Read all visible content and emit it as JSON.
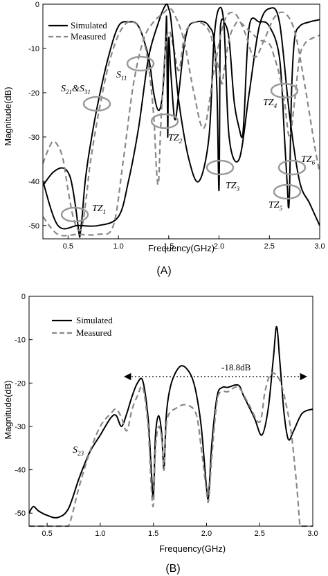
{
  "chart_data": [
    {
      "type": "line",
      "panel_label": "(A)",
      "xlabel": "Frequency(GHz)",
      "ylabel": "Magnitude(dB)",
      "xlim": [
        0.25,
        3.0
      ],
      "ylim": [
        -53,
        0
      ],
      "xticks": [
        "0.5",
        "1.0",
        "1.5",
        "2.0",
        "2.5",
        "3.0"
      ],
      "yticks": [
        "0",
        "-10",
        "-20",
        "-30",
        "-40",
        "-50"
      ],
      "legend": "top-left",
      "series": [
        {
          "name": "Simulated",
          "style": "solid",
          "color": "#000000",
          "x": [
            0.25,
            0.35,
            0.45,
            0.52,
            0.57,
            0.61,
            0.62,
            0.64,
            0.67,
            0.72,
            0.8,
            0.9,
            1.0,
            1.1,
            1.2,
            1.3,
            1.35,
            1.4,
            1.44,
            1.47,
            1.48,
            1.49,
            1.5,
            1.52,
            1.56,
            1.6,
            1.65,
            1.7,
            1.78,
            1.85,
            1.9,
            1.95,
            1.98,
            2.0,
            2.01,
            2.02,
            2.05,
            2.1,
            2.15,
            2.2,
            2.23,
            2.25,
            2.3,
            2.4,
            2.5,
            2.6,
            2.65,
            2.68,
            2.69,
            2.7,
            2.72,
            2.75,
            2.8,
            2.9,
            3.0
          ],
          "y": [
            -41,
            -38,
            -37,
            -39,
            -45,
            -52,
            -52,
            -48,
            -40,
            -32,
            -22,
            -12,
            -5,
            -4,
            -5,
            -12,
            -20,
            -24,
            -20,
            -8,
            -4,
            -30,
            -8,
            -15,
            -26,
            -20,
            -10,
            -5,
            -4,
            -4,
            -5,
            -8,
            -20,
            -42,
            -10,
            -4,
            -4,
            -8,
            -22,
            -28,
            -30,
            -25,
            -5,
            -4,
            -5,
            -12,
            -30,
            -42,
            -46,
            -42,
            -20,
            -8,
            -5,
            -4,
            -3.5
          ]
        },
        {
          "name": "Measured",
          "style": "dashed",
          "color": "#888888",
          "x": [
            0.25,
            0.3,
            0.35,
            0.4,
            0.45,
            0.5,
            0.55,
            0.6,
            0.64,
            0.68,
            0.72,
            0.8,
            0.9,
            1.0,
            1.1,
            1.2,
            1.26,
            1.3,
            1.35,
            1.38,
            1.4,
            1.42,
            1.46,
            1.5,
            1.55,
            1.6,
            1.65,
            1.7,
            1.8,
            1.9,
            1.95,
            2.0,
            2.03,
            2.05,
            2.1,
            2.15,
            2.2,
            2.3,
            2.4,
            2.5,
            2.55,
            2.6,
            2.65,
            2.7,
            2.75,
            2.8,
            2.85,
            2.9,
            3.0
          ],
          "y": [
            -36,
            -33,
            -31,
            -32,
            -35,
            -42,
            -48,
            -51,
            -50,
            -44,
            -36,
            -25,
            -14,
            -7,
            -4,
            -5,
            -9,
            -14,
            -25,
            -38,
            -40,
            -28,
            -12,
            -6,
            -10,
            -15,
            -8,
            -5,
            -4,
            -6,
            -10,
            -15,
            -18,
            -15,
            -8,
            -5,
            -4,
            -6,
            -8,
            -9,
            -12,
            -16,
            -22,
            -30,
            -22,
            -12,
            -9,
            -8,
            -7
          ]
        },
        {
          "name": "",
          "style": "solid",
          "color": "#000000",
          "x": [
            0.25,
            0.4,
            0.6,
            0.8,
            1.0,
            1.1,
            1.2,
            1.3,
            1.4,
            1.45,
            1.48,
            1.5,
            1.52,
            1.55,
            1.6,
            1.7,
            1.8,
            1.9,
            1.95,
            2.0,
            2.05,
            2.1,
            2.2,
            2.3,
            2.4,
            2.5,
            2.6,
            2.7,
            2.8,
            2.9,
            3.0
          ],
          "y": [
            -40,
            -50,
            -50,
            -50,
            -48,
            -40,
            -28,
            -12,
            -4,
            -1,
            0,
            -1,
            -3,
            -10,
            -22,
            -35,
            -40,
            -30,
            -8,
            -1,
            -5,
            -30,
            -35,
            -20,
            -5,
            -1,
            -4,
            -25,
            -40,
            -45,
            -50
          ]
        },
        {
          "name": "",
          "style": "dashed",
          "color": "#888888",
          "x": [
            0.25,
            0.4,
            0.6,
            0.8,
            0.95,
            1.05,
            1.15,
            1.25,
            1.35,
            1.45,
            1.5,
            1.55,
            1.65,
            1.75,
            1.85,
            1.95,
            2.05,
            2.15,
            2.25,
            2.35,
            2.45,
            2.55,
            2.65,
            2.75,
            2.85,
            2.95,
            3.0
          ],
          "y": [
            -48,
            -52,
            -52,
            -52,
            -50,
            -35,
            -18,
            -8,
            -4,
            -2,
            -1,
            -2,
            -8,
            -20,
            -28,
            -15,
            -4,
            -2,
            -6,
            -12,
            -8,
            -3,
            -2,
            -6,
            -18,
            -32,
            -38
          ]
        }
      ],
      "annotations": [
        {
          "text": "TZ",
          "sub": "1"
        },
        {
          "text": "TZ",
          "sub": "2"
        },
        {
          "text": "TZ",
          "sub": "3"
        },
        {
          "text": "TZ",
          "sub": "4"
        },
        {
          "text": "TZ",
          "sub": "5"
        },
        {
          "text": "TZ",
          "sub": "6"
        },
        {
          "text": "S",
          "sub": "11"
        },
        {
          "text": "S",
          "sub": "21",
          "mid": "&",
          "text2": "S",
          "sub2": "31"
        }
      ]
    },
    {
      "type": "line",
      "panel_label": "(B)",
      "xlabel": "Frequency(GHz)",
      "ylabel": "Magnitude(dB)",
      "xlim": [
        0.33,
        3.0
      ],
      "ylim": [
        -53,
        0
      ],
      "xticks": [
        "0.5",
        "1.0",
        "1.5",
        "2.0",
        "2.5",
        "3.0"
      ],
      "yticks": [
        "0",
        "-10",
        "-20",
        "-30",
        "-40",
        "-50"
      ],
      "legend": "top-left",
      "series": [
        {
          "name": "Simulated",
          "style": "solid",
          "color": "#000000",
          "x": [
            0.33,
            0.37,
            0.42,
            0.5,
            0.6,
            0.7,
            0.8,
            0.9,
            1.0,
            1.1,
            1.15,
            1.2,
            1.25,
            1.3,
            1.35,
            1.4,
            1.45,
            1.48,
            1.5,
            1.52,
            1.55,
            1.58,
            1.6,
            1.62,
            1.65,
            1.7,
            1.77,
            1.85,
            1.9,
            1.95,
            2.0,
            2.02,
            2.05,
            2.1,
            2.15,
            2.2,
            2.3,
            2.35,
            2.45,
            2.52,
            2.58,
            2.63,
            2.66,
            2.69,
            2.73,
            2.77,
            2.82,
            2.9,
            3.0
          ],
          "y": [
            -50,
            -48.5,
            -49.5,
            -50.5,
            -51,
            -49,
            -42,
            -36,
            -32,
            -28,
            -27.5,
            -30,
            -27,
            -23,
            -20,
            -19.5,
            -28,
            -40,
            -46,
            -32,
            -27.5,
            -32,
            -40,
            -28,
            -22,
            -18,
            -16,
            -18,
            -22,
            -30,
            -44,
            -46,
            -34,
            -23,
            -21,
            -21,
            -20.5,
            -23,
            -28,
            -32,
            -26,
            -14,
            -7,
            -15,
            -27,
            -33,
            -31,
            -27,
            -26
          ]
        },
        {
          "name": "Measured",
          "style": "dashed",
          "color": "#888888",
          "x": [
            0.33,
            0.4,
            0.5,
            0.6,
            0.7,
            0.8,
            0.9,
            1.0,
            1.1,
            1.15,
            1.2,
            1.25,
            1.3,
            1.35,
            1.4,
            1.45,
            1.48,
            1.5,
            1.52,
            1.55,
            1.58,
            1.6,
            1.62,
            1.65,
            1.7,
            1.8,
            1.9,
            1.95,
            2.0,
            2.02,
            2.05,
            2.1,
            2.15,
            2.2,
            2.3,
            2.4,
            2.5,
            2.55,
            2.6,
            2.65,
            2.7,
            2.75,
            2.8,
            2.85,
            2.88,
            2.9,
            3.0
          ],
          "y": [
            -56,
            -56,
            -56,
            -56,
            -56,
            -44,
            -36,
            -30,
            -27,
            -26,
            -28,
            -31,
            -26,
            -23,
            -21,
            -30,
            -44,
            -48,
            -35,
            -30,
            -33,
            -40,
            -30,
            -27,
            -26,
            -25,
            -27,
            -35,
            -45,
            -47,
            -37,
            -24,
            -22,
            -22,
            -21,
            -25,
            -29,
            -22,
            -18,
            -18,
            -20,
            -25,
            -32,
            -44,
            -53,
            -56,
            -56
          ]
        }
      ],
      "annotations": [
        {
          "text": "S",
          "sub": "23"
        },
        {
          "text": "-18.8dB"
        }
      ]
    }
  ]
}
